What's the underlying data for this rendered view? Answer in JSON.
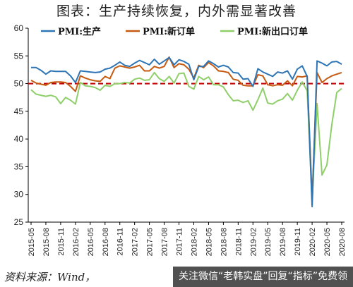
{
  "title": "图表：生产持续恢复，内外需显著改善",
  "source": "资料来源：Wind，",
  "watermark": "关注微信“老韩实盘”回复“指标”免费领",
  "colors": {
    "production": "#2e75b6",
    "new_orders": "#c55a11",
    "new_export_orders": "#8fcf6a",
    "reference": "#c00000",
    "axis": "#000000"
  },
  "chart_data": {
    "type": "line",
    "ylim": [
      25,
      60
    ],
    "yticks": [
      25,
      30,
      35,
      40,
      45,
      50,
      55,
      60
    ],
    "xtick_labels": [
      "2015-05",
      "2015-08",
      "2015-11",
      "2016-02",
      "2016-05",
      "2016-08",
      "2016-11",
      "2017-02",
      "2017-05",
      "2017-08",
      "2017-11",
      "2018-02",
      "2018-05",
      "2018-08",
      "2018-11",
      "2019-02",
      "2019-05",
      "2019-08",
      "2019-11",
      "2020-02",
      "2020-05",
      "2020-08"
    ],
    "reference_line": 50,
    "legend_position": "top",
    "x": [
      "2015-05",
      "2015-06",
      "2015-07",
      "2015-08",
      "2015-09",
      "2015-10",
      "2015-11",
      "2015-12",
      "2016-01",
      "2016-02",
      "2016-03",
      "2016-04",
      "2016-05",
      "2016-06",
      "2016-07",
      "2016-08",
      "2016-09",
      "2016-10",
      "2016-11",
      "2016-12",
      "2017-01",
      "2017-02",
      "2017-03",
      "2017-04",
      "2017-05",
      "2017-06",
      "2017-07",
      "2017-08",
      "2017-09",
      "2017-10",
      "2017-11",
      "2017-12",
      "2018-01",
      "2018-02",
      "2018-03",
      "2018-04",
      "2018-05",
      "2018-06",
      "2018-07",
      "2018-08",
      "2018-09",
      "2018-10",
      "2018-11",
      "2018-12",
      "2019-01",
      "2019-02",
      "2019-03",
      "2019-04",
      "2019-05",
      "2019-06",
      "2019-07",
      "2019-08",
      "2019-09",
      "2019-10",
      "2019-11",
      "2019-12",
      "2020-01",
      "2020-02",
      "2020-03",
      "2020-04",
      "2020-05",
      "2020-06",
      "2020-07",
      "2020-08"
    ],
    "series": [
      {
        "name": "PMI:生产",
        "color_key": "production",
        "values": [
          52.9,
          52.9,
          52.4,
          51.7,
          52.3,
          52.2,
          52.2,
          52.2,
          51.4,
          50.2,
          52.3,
          52.2,
          52.1,
          52.0,
          52.1,
          52.6,
          52.8,
          53.3,
          53.9,
          53.3,
          53.1,
          53.7,
          54.2,
          53.8,
          53.4,
          54.4,
          53.5,
          54.1,
          54.7,
          53.4,
          54.3,
          54.0,
          53.5,
          50.7,
          53.1,
          53.1,
          54.1,
          53.6,
          53.0,
          53.3,
          53.0,
          52.0,
          51.9,
          50.8,
          50.9,
          49.5,
          52.7,
          52.1,
          51.7,
          51.3,
          52.1,
          51.9,
          52.3,
          50.8,
          52.6,
          53.2,
          51.3,
          27.8,
          54.1,
          53.7,
          53.2,
          53.9,
          54.0,
          53.5
        ]
      },
      {
        "name": "PMI:新订单",
        "color_key": "new_orders",
        "values": [
          50.6,
          50.1,
          49.9,
          49.7,
          50.2,
          50.3,
          50.3,
          50.2,
          49.5,
          48.6,
          51.4,
          51.0,
          50.7,
          50.5,
          50.4,
          51.3,
          50.9,
          52.8,
          53.2,
          53.0,
          52.8,
          53.0,
          53.3,
          52.3,
          52.3,
          53.1,
          52.8,
          53.1,
          54.8,
          52.9,
          53.6,
          53.4,
          52.6,
          51.0,
          53.3,
          52.9,
          53.8,
          53.2,
          52.3,
          52.2,
          52.0,
          50.8,
          50.6,
          49.7,
          49.6,
          49.6,
          51.6,
          51.4,
          49.8,
          49.6,
          49.8,
          49.7,
          50.5,
          49.6,
          51.3,
          51.2,
          51.4,
          29.3,
          52.0,
          50.2,
          50.9,
          51.4,
          51.7,
          52.0
        ]
      },
      {
        "name": "PMI:新出口订单",
        "color_key": "new_export_orders",
        "values": [
          48.9,
          48.1,
          47.9,
          47.7,
          47.9,
          47.6,
          46.4,
          47.5,
          47.0,
          46.3,
          50.2,
          49.6,
          49.5,
          49.3,
          48.8,
          49.7,
          49.5,
          50.0,
          50.0,
          50.2,
          50.1,
          50.8,
          51.0,
          50.6,
          50.7,
          52.0,
          50.9,
          50.4,
          51.3,
          50.1,
          51.8,
          51.9,
          49.5,
          49.0,
          51.3,
          50.7,
          51.2,
          49.8,
          49.8,
          49.4,
          48.0,
          46.9,
          47.0,
          46.6,
          46.9,
          45.2,
          47.1,
          49.2,
          46.5,
          46.3,
          46.9,
          47.2,
          48.2,
          47.0,
          48.8,
          50.3,
          48.7,
          28.7,
          46.4,
          33.5,
          35.3,
          42.6,
          48.4,
          49.1
        ]
      }
    ]
  }
}
